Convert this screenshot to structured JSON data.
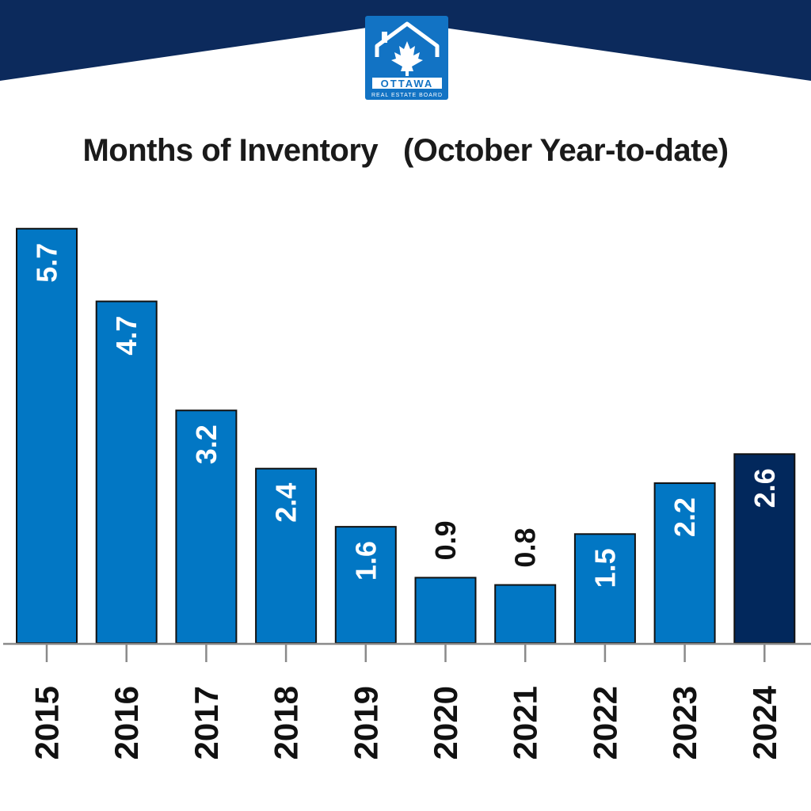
{
  "branding": {
    "logo_word": "OTTAWA",
    "logo_subtitle": "REAL ESTATE BOARD",
    "navy": "#0c2a5c",
    "logo_blue": "#1273c4"
  },
  "chart_data": {
    "type": "bar",
    "title": "Months of Inventory   (October Year-to-date)",
    "xlabel": "",
    "ylabel": "",
    "ylim": [
      0,
      5.9
    ],
    "grid": false,
    "categories": [
      "2015",
      "2016",
      "2017",
      "2018",
      "2019",
      "2020",
      "2021",
      "2022",
      "2023",
      "2024"
    ],
    "values": [
      5.7,
      4.7,
      3.2,
      2.4,
      1.6,
      0.9,
      0.8,
      1.5,
      2.2,
      2.6
    ],
    "colors": {
      "bar": "#0277c4",
      "highlight_bar": "#02285c",
      "bar_outline": "#111111",
      "label_inside": "#ffffff",
      "label_outside": "#111111",
      "axis": "#8a8a8a",
      "tick_label": "#111111"
    },
    "highlight_category": "2024",
    "labels_outside_for": [
      "2020",
      "2021"
    ]
  }
}
